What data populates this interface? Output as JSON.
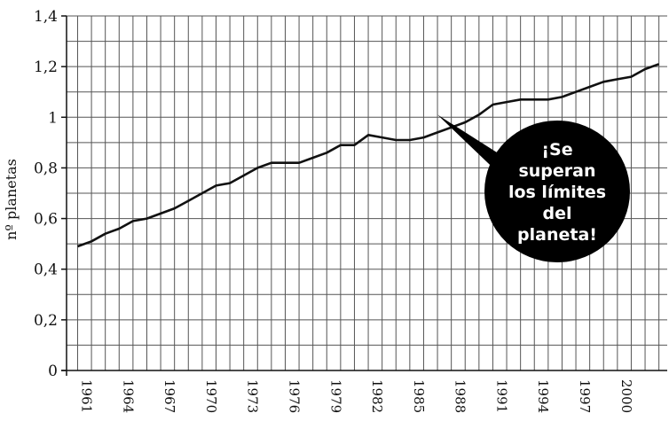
{
  "chart_data": {
    "type": "line",
    "ylabel": "nº planetas",
    "ylim": [
      0,
      1.4
    ],
    "yticks": [
      {
        "value": 0,
        "label": "0"
      },
      {
        "value": 0.2,
        "label": "0,2"
      },
      {
        "value": 0.4,
        "label": "0,4"
      },
      {
        "value": 0.6,
        "label": "0,6"
      },
      {
        "value": 0.8,
        "label": "0,8"
      },
      {
        "value": 1.0,
        "label": "1"
      },
      {
        "value": 1.2,
        "label": "1,2"
      },
      {
        "value": 1.4,
        "label": "1,4"
      }
    ],
    "xlim": [
      1960.2,
      2003.6
    ],
    "xticks": [
      {
        "value": 1961,
        "label": "1961"
      },
      {
        "value": 1964,
        "label": "1964"
      },
      {
        "value": 1967,
        "label": "1967"
      },
      {
        "value": 1970,
        "label": "1970"
      },
      {
        "value": 1973,
        "label": "1973"
      },
      {
        "value": 1976,
        "label": "1976"
      },
      {
        "value": 1979,
        "label": "1979"
      },
      {
        "value": 1982,
        "label": "1982"
      },
      {
        "value": 1985,
        "label": "1985"
      },
      {
        "value": 1988,
        "label": "1988"
      },
      {
        "value": 1991,
        "label": "1991"
      },
      {
        "value": 1994,
        "label": "1994"
      },
      {
        "value": 1997,
        "label": "1997"
      },
      {
        "value": 2000,
        "label": "2000"
      }
    ],
    "gridlines": {
      "vertical_every_year": true,
      "horizontal_every": 0.1
    },
    "series": [
      {
        "x": [
          1961,
          1962,
          1963,
          1964,
          1965,
          1966,
          1967,
          1968,
          1969,
          1970,
          1971,
          1972,
          1973,
          1974,
          1975,
          1976,
          1977,
          1978,
          1979,
          1980,
          1981,
          1982,
          1983,
          1984,
          1985,
          1986,
          1987,
          1988,
          1989,
          1990,
          1991,
          1992,
          1993,
          1994,
          1995,
          1996,
          1997,
          1998,
          1999,
          2000,
          2001,
          2002,
          2003
        ],
        "y": [
          0.49,
          0.51,
          0.54,
          0.56,
          0.59,
          0.6,
          0.62,
          0.64,
          0.67,
          0.7,
          0.73,
          0.74,
          0.77,
          0.8,
          0.82,
          0.82,
          0.82,
          0.84,
          0.86,
          0.89,
          0.89,
          0.93,
          0.92,
          0.91,
          0.91,
          0.92,
          0.94,
          0.96,
          0.98,
          1.01,
          1.05,
          1.06,
          1.07,
          1.07,
          1.07,
          1.08,
          1.1,
          1.12,
          1.14,
          1.15,
          1.16,
          1.19,
          1.21
        ],
        "color": "#111111"
      }
    ],
    "annotation": {
      "lines": [
        "¡Se",
        "superan",
        "los límites",
        "del",
        "planeta!"
      ],
      "points_to": {
        "x": 1987,
        "y": 1.01
      },
      "fill": "#000000",
      "text_color": "#ffffff"
    }
  }
}
